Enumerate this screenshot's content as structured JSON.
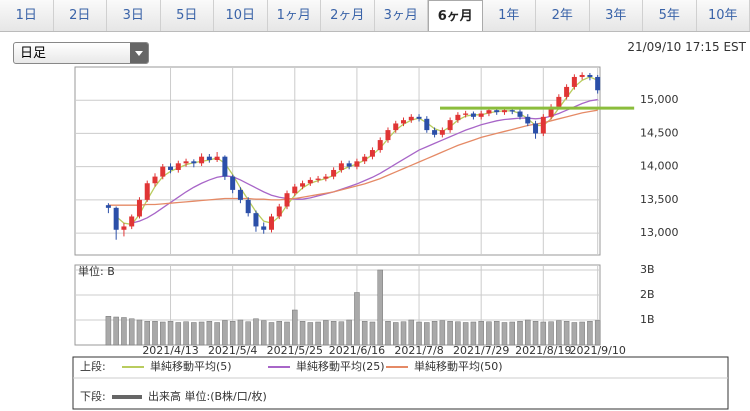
{
  "tabs": [
    "1日",
    "2日",
    "3日",
    "5日",
    "10日",
    "1ヶ月",
    "2ヶ月",
    "3ヶ月",
    "6ヶ月",
    "1年",
    "2年",
    "3年",
    "5年",
    "10年"
  ],
  "selected_tab": 8,
  "dropdown": "日足",
  "timestamp": "21/09/10 17:15 EST",
  "legend": {
    "upper": "上段:",
    "lower": "下段:"
  },
  "chart_data": [
    {
      "type": "candlestick",
      "up_color": "#e03535",
      "down_color": "#2b4fa8",
      "xlim": [
        -4.3,
        63.3
      ],
      "ylim": [
        12670,
        15500
      ],
      "yticks": [
        {
          "value": 13000,
          "label": "13,000"
        },
        {
          "value": 13500,
          "label": "13,500"
        },
        {
          "value": 14000,
          "label": "14,000"
        },
        {
          "value": 14500,
          "label": "14,500"
        },
        {
          "value": 15000,
          "label": "15,000"
        }
      ],
      "grid": true,
      "hline": {
        "value": 14880,
        "x": [
          42.7,
          67.7
        ],
        "color": "#8bbd3c"
      },
      "candles": [
        [
          13420,
          13450,
          13300,
          13380
        ],
        [
          13380,
          13400,
          12900,
          13050
        ],
        [
          13050,
          13150,
          12950,
          13100
        ],
        [
          13100,
          13280,
          13060,
          13250
        ],
        [
          13250,
          13540,
          13220,
          13500
        ],
        [
          13500,
          13790,
          13470,
          13750
        ],
        [
          13750,
          13900,
          13700,
          13850
        ],
        [
          13850,
          14040,
          13810,
          14000
        ],
        [
          14000,
          14050,
          13900,
          13950
        ],
        [
          13950,
          14090,
          13910,
          14050
        ],
        [
          14050,
          14120,
          14000,
          14080
        ],
        [
          14080,
          14110,
          13990,
          14050
        ],
        [
          14050,
          14200,
          14010,
          14150
        ],
        [
          14150,
          14190,
          14060,
          14100
        ],
        [
          14100,
          14220,
          14070,
          14150
        ],
        [
          14150,
          14170,
          13800,
          13850
        ],
        [
          13850,
          13880,
          13600,
          13650
        ],
        [
          13650,
          13690,
          13450,
          13500
        ],
        [
          13500,
          13540,
          13250,
          13300
        ],
        [
          13300,
          13340,
          13020,
          13100
        ],
        [
          13100,
          13160,
          12990,
          13050
        ],
        [
          13050,
          13290,
          13010,
          13250
        ],
        [
          13250,
          13440,
          13210,
          13400
        ],
        [
          13400,
          13640,
          13360,
          13600
        ],
        [
          13600,
          13740,
          13560,
          13700
        ],
        [
          13700,
          13790,
          13660,
          13750
        ],
        [
          13750,
          13840,
          13710,
          13800
        ],
        [
          13800,
          13860,
          13760,
          13820
        ],
        [
          13820,
          13890,
          13780,
          13850
        ],
        [
          13850,
          13990,
          13810,
          13950
        ],
        [
          13950,
          14090,
          13910,
          14050
        ],
        [
          14050,
          14090,
          13960,
          14000
        ],
        [
          14000,
          14120,
          13960,
          14080
        ],
        [
          14080,
          14190,
          14040,
          14150
        ],
        [
          14150,
          14290,
          14110,
          14250
        ],
        [
          14250,
          14440,
          14210,
          14400
        ],
        [
          14400,
          14590,
          14360,
          14550
        ],
        [
          14550,
          14690,
          14510,
          14650
        ],
        [
          14650,
          14740,
          14610,
          14700
        ],
        [
          14700,
          14790,
          14660,
          14750
        ],
        [
          14750,
          14790,
          14680,
          14720
        ],
        [
          14720,
          14760,
          14510,
          14550
        ],
        [
          14550,
          14590,
          14440,
          14480
        ],
        [
          14480,
          14590,
          14440,
          14550
        ],
        [
          14550,
          14740,
          14510,
          14700
        ],
        [
          14700,
          14820,
          14660,
          14780
        ],
        [
          14780,
          14840,
          14740,
          14800
        ],
        [
          14800,
          14830,
          14710,
          14750
        ],
        [
          14750,
          14840,
          14710,
          14800
        ],
        [
          14800,
          14890,
          14760,
          14850
        ],
        [
          14850,
          14880,
          14780,
          14820
        ],
        [
          14820,
          14890,
          14780,
          14850
        ],
        [
          14850,
          14880,
          14790,
          14830
        ],
        [
          14830,
          14860,
          14710,
          14750
        ],
        [
          14750,
          14790,
          14610,
          14650
        ],
        [
          14650,
          14690,
          14420,
          14500
        ],
        [
          14500,
          14790,
          14460,
          14750
        ],
        [
          14750,
          14940,
          14710,
          14900
        ],
        [
          14900,
          15090,
          14860,
          15050
        ],
        [
          15050,
          15240,
          15010,
          15200
        ],
        [
          15200,
          15390,
          15160,
          15350
        ],
        [
          15350,
          15420,
          15310,
          15380
        ],
        [
          15380,
          15410,
          15300,
          15350
        ],
        [
          15350,
          15380,
          15100,
          15150
        ]
      ],
      "series": [
        {
          "name": "単純移動平均(5)",
          "color": "#b9cc5e",
          "values": [
            null,
            13250,
            13150,
            13130,
            13280,
            13500,
            13700,
            13850,
            13930,
            13980,
            14030,
            14060,
            14080,
            14100,
            14130,
            14050,
            13880,
            13680,
            13500,
            13320,
            13180,
            13150,
            13250,
            13420,
            13570,
            13680,
            13750,
            13790,
            13820,
            13870,
            13950,
            14000,
            14040,
            14100,
            14180,
            14280,
            14420,
            14550,
            14640,
            14700,
            14730,
            14660,
            14570,
            14530,
            14600,
            14700,
            14760,
            14780,
            14780,
            14810,
            14830,
            14840,
            14840,
            14800,
            14720,
            14620,
            14620,
            14720,
            14880,
            15040,
            15200,
            15300,
            15350,
            15300
          ]
        },
        {
          "name": "単純移動平均(25)",
          "color": "#a866c8",
          "values": [
            null,
            null,
            null,
            13150,
            13180,
            13230,
            13300,
            13380,
            13460,
            13540,
            13620,
            13690,
            13750,
            13800,
            13840,
            13860,
            13850,
            13800,
            13740,
            13680,
            13620,
            13570,
            13540,
            13520,
            13510,
            13510,
            13530,
            13560,
            13590,
            13620,
            13660,
            13700,
            13740,
            13790,
            13840,
            13900,
            13970,
            14040,
            14110,
            14180,
            14250,
            14300,
            14350,
            14400,
            14450,
            14500,
            14550,
            14590,
            14630,
            14660,
            14690,
            14710,
            14720,
            14730,
            14730,
            14720,
            14730,
            14760,
            14800,
            14850,
            14900,
            14950,
            14990,
            15010
          ]
        },
        {
          "name": "単純移動平均(50)",
          "color": "#e58a66",
          "values": [
            13420,
            13420,
            13420,
            13420,
            13420,
            13430,
            13430,
            13440,
            13450,
            13460,
            13470,
            13480,
            13490,
            13500,
            13510,
            13520,
            13520,
            13520,
            13520,
            13510,
            13510,
            13500,
            13500,
            13510,
            13520,
            13540,
            13560,
            13580,
            13600,
            13620,
            13650,
            13680,
            13710,
            13740,
            13780,
            13820,
            13870,
            13920,
            13970,
            14020,
            14070,
            14120,
            14170,
            14220,
            14270,
            14320,
            14360,
            14400,
            14440,
            14470,
            14500,
            14530,
            14560,
            14590,
            14620,
            14640,
            14660,
            14690,
            14720,
            14750,
            14780,
            14810,
            14830,
            14850
          ]
        }
      ]
    },
    {
      "type": "bar",
      "unit_label": "単位: B",
      "name": "出来高 単位:(B株/口/枚)",
      "color": "#a9a9a9",
      "legend_color": "#666666",
      "xlim": [
        -4.3,
        63.3
      ],
      "ylim": [
        0,
        3.2
      ],
      "yticks": [
        {
          "value": 1,
          "label": "1B"
        },
        {
          "value": 2,
          "label": "2B"
        },
        {
          "value": 3,
          "label": "3B"
        }
      ],
      "xticks": [
        {
          "value": 8,
          "label": "2021/4/13"
        },
        {
          "value": 16,
          "label": "2021/5/4"
        },
        {
          "value": 24,
          "label": "2021/5/25"
        },
        {
          "value": 32,
          "label": "2021/6/16"
        },
        {
          "value": 40,
          "label": "2021/7/8"
        },
        {
          "value": 48,
          "label": "2021/7/29"
        },
        {
          "value": 56,
          "label": "2021/8/19"
        },
        {
          "value": 63,
          "label": "2021/9/10"
        }
      ],
      "values": [
        1.15,
        1.12,
        1.1,
        1.05,
        1.0,
        0.95,
        0.95,
        0.92,
        0.95,
        0.9,
        0.93,
        0.9,
        0.92,
        0.95,
        0.9,
        0.98,
        0.95,
        1.0,
        0.93,
        1.05,
        0.97,
        0.9,
        0.95,
        0.92,
        1.4,
        0.95,
        0.9,
        0.92,
        0.98,
        0.95,
        0.93,
        1.0,
        2.1,
        0.95,
        0.92,
        3.0,
        0.95,
        0.9,
        0.93,
        1.0,
        0.92,
        0.9,
        0.95,
        0.97,
        0.95,
        0.93,
        0.9,
        0.92,
        0.95,
        0.93,
        0.95,
        0.9,
        0.92,
        0.95,
        1.0,
        0.95,
        0.92,
        0.93,
        0.97,
        0.95,
        0.9,
        0.92,
        0.95,
        0.98
      ]
    }
  ]
}
